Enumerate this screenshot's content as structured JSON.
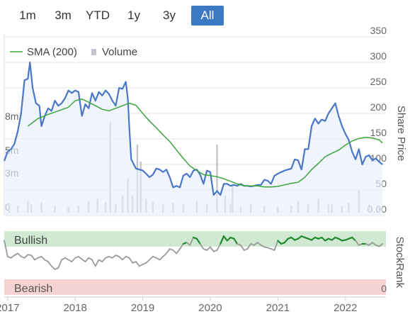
{
  "range_buttons": [
    {
      "label": "1m",
      "active": false
    },
    {
      "label": "3m",
      "active": false
    },
    {
      "label": "YTD",
      "active": false
    },
    {
      "label": "1y",
      "active": false
    },
    {
      "label": "3y",
      "active": false
    },
    {
      "label": "All",
      "active": true
    }
  ],
  "legend": {
    "sma_label": "SMA (200)",
    "volume_label": "Volume"
  },
  "colors": {
    "price": "#4a78c7",
    "sma": "#3aa63a",
    "volume": "#c4c4cc",
    "stockrank_green": "#1f8a2c",
    "stockrank_grey": "#9a9a9a",
    "bullish_band": "#cfe9d3",
    "bearish_band": "#f6d3d3",
    "active_button": "#3c78c3"
  },
  "chart_data": [
    {
      "type": "line",
      "ylabel": "Share Price",
      "ylim": [
        0,
        350
      ],
      "y_ticks": [
        "350",
        "300",
        "250",
        "200",
        "150",
        "100",
        "50",
        "0.00"
      ],
      "volume_ticks": [
        "8m",
        "5m",
        "3m",
        "0"
      ],
      "volume_ylim": [
        0,
        10
      ],
      "x_ticks": [
        "2017",
        "2018",
        "2019",
        "2020",
        "2021",
        "2022"
      ],
      "x_tick_values": [
        2017.0,
        2018.0,
        2019.0,
        2020.0,
        2021.0,
        2022.0
      ],
      "xlim": [
        2016.95,
        2022.6
      ],
      "series": [
        {
          "name": "Price",
          "x": [
            2016.95,
            2017.0,
            2017.05,
            2017.1,
            2017.15,
            2017.2,
            2017.25,
            2017.3,
            2017.33,
            2017.37,
            2017.42,
            2017.47,
            2017.5,
            2017.55,
            2017.6,
            2017.65,
            2017.7,
            2017.75,
            2017.8,
            2017.85,
            2017.9,
            2017.95,
            2018.0,
            2018.05,
            2018.1,
            2018.15,
            2018.2,
            2018.25,
            2018.3,
            2018.35,
            2018.4,
            2018.45,
            2018.5,
            2018.55,
            2018.6,
            2018.65,
            2018.7,
            2018.75,
            2018.78,
            2018.8,
            2018.83,
            2018.9,
            2018.95,
            2019.0,
            2019.05,
            2019.1,
            2019.15,
            2019.2,
            2019.25,
            2019.3,
            2019.35,
            2019.4,
            2019.45,
            2019.5,
            2019.55,
            2019.6,
            2019.65,
            2019.7,
            2019.75,
            2019.8,
            2019.85,
            2019.9,
            2019.95,
            2020.0,
            2020.05,
            2020.1,
            2020.15,
            2020.2,
            2020.25,
            2020.3,
            2020.35,
            2020.4,
            2020.45,
            2020.5,
            2020.55,
            2020.6,
            2020.65,
            2020.7,
            2020.75,
            2020.8,
            2020.85,
            2020.9,
            2020.95,
            2021.0,
            2021.05,
            2021.1,
            2021.15,
            2021.2,
            2021.25,
            2021.3,
            2021.35,
            2021.4,
            2021.45,
            2021.5,
            2021.55,
            2021.6,
            2021.65,
            2021.7,
            2021.75,
            2021.8,
            2021.85,
            2021.9,
            2021.95,
            2022.0,
            2022.05,
            2022.1,
            2022.15,
            2022.2,
            2022.25,
            2022.3,
            2022.35,
            2022.4,
            2022.45,
            2022.5,
            2022.55
          ],
          "values": [
            107,
            125,
            130,
            140,
            165,
            200,
            265,
            268,
            300,
            250,
            220,
            215,
            175,
            195,
            210,
            205,
            225,
            215,
            220,
            230,
            245,
            240,
            245,
            242,
            195,
            218,
            210,
            240,
            225,
            242,
            235,
            245,
            238,
            225,
            215,
            250,
            248,
            262,
            228,
            175,
            110,
            92,
            90,
            88,
            82,
            75,
            80,
            92,
            90,
            85,
            90,
            75,
            55,
            58,
            55,
            78,
            82,
            75,
            88,
            90,
            80,
            62,
            88,
            85,
            40,
            48,
            40,
            62,
            62,
            58,
            60,
            58,
            62,
            58,
            58,
            57,
            58,
            60,
            60,
            70,
            68,
            62,
            78,
            82,
            85,
            88,
            90,
            92,
            110,
            108,
            90,
            130,
            130,
            175,
            190,
            180,
            188,
            185,
            200,
            210,
            220,
            195,
            175,
            160,
            148,
            125,
            110,
            130,
            100,
            115,
            118,
            108,
            112,
            105,
            100
          ]
        },
        {
          "name": "SMA (200)",
          "x": [
            2017.3,
            2017.45,
            2017.6,
            2017.75,
            2017.9,
            2018.0,
            2018.1,
            2018.2,
            2018.3,
            2018.4,
            2018.5,
            2018.6,
            2018.7,
            2018.8,
            2018.9,
            2019.0,
            2019.1,
            2019.2,
            2019.3,
            2019.4,
            2019.5,
            2019.6,
            2019.7,
            2019.8,
            2019.9,
            2020.0,
            2020.1,
            2020.2,
            2020.3,
            2020.4,
            2020.5,
            2020.6,
            2020.7,
            2020.8,
            2020.9,
            2021.0,
            2021.1,
            2021.2,
            2021.3,
            2021.4,
            2021.5,
            2021.6,
            2021.7,
            2021.8,
            2021.9,
            2022.0,
            2022.1,
            2022.2,
            2022.3,
            2022.4,
            2022.5,
            2022.55
          ],
          "values": [
            175,
            190,
            198,
            205,
            212,
            225,
            228,
            222,
            215,
            208,
            205,
            210,
            215,
            220,
            216,
            200,
            185,
            172,
            158,
            145,
            128,
            112,
            97,
            88,
            80,
            78,
            76,
            72,
            67,
            62,
            58,
            58,
            58,
            56,
            56,
            57,
            60,
            63,
            65,
            75,
            90,
            102,
            115,
            122,
            128,
            138,
            146,
            151,
            153,
            152,
            148,
            142
          ]
        },
        {
          "name": "Volume",
          "x": [
            2017.02,
            2017.15,
            2017.3,
            2017.35,
            2017.5,
            2017.7,
            2017.9,
            2018.05,
            2018.2,
            2018.33,
            2018.45,
            2018.52,
            2018.6,
            2018.7,
            2018.78,
            2018.85,
            2018.92,
            2018.97,
            2019.05,
            2019.15,
            2019.3,
            2019.45,
            2019.6,
            2019.8,
            2019.95,
            2020.1,
            2020.22,
            2020.3,
            2020.33,
            2020.45,
            2020.6,
            2020.8,
            2021.0,
            2021.2,
            2021.3,
            2021.45,
            2021.6,
            2021.75,
            2021.8,
            2021.95,
            2022.05,
            2022.2,
            2022.35,
            2022.5
          ],
          "values": [
            0.8,
            0.6,
            1.0,
            0.7,
            0.9,
            0.6,
            0.5,
            0.6,
            1.0,
            1.2,
            0.9,
            8.0,
            0.7,
            1.5,
            3.0,
            1.5,
            6.0,
            4.5,
            1.2,
            0.9,
            0.7,
            0.9,
            0.8,
            1.0,
            0.7,
            6.0,
            1.5,
            0.8,
            2.5,
            0.5,
            0.7,
            0.6,
            0.5,
            0.6,
            1.0,
            0.8,
            1.2,
            0.7,
            0.8,
            0.6,
            0.9,
            2.0,
            0.7,
            0.6
          ]
        }
      ]
    },
    {
      "type": "line",
      "ylabel": "StockRank",
      "ylim": [
        0,
        100
      ],
      "y_ticks": [
        "0"
      ],
      "band_labels": {
        "top": "Bullish",
        "bottom": "Bearish"
      },
      "x_ticks": [
        "2017",
        "2018",
        "2019",
        "2020",
        "2021",
        "2022"
      ],
      "x_tick_values": [
        2017.0,
        2018.0,
        2019.0,
        2020.0,
        2021.0,
        2022.0
      ],
      "xlim": [
        2016.95,
        2022.6
      ],
      "series": [
        {
          "name": "StockRank",
          "x": [
            2016.95,
            2017.0,
            2017.05,
            2017.1,
            2017.15,
            2017.2,
            2017.25,
            2017.3,
            2017.35,
            2017.4,
            2017.45,
            2017.5,
            2017.55,
            2017.6,
            2017.65,
            2017.7,
            2017.75,
            2017.8,
            2017.85,
            2017.9,
            2017.95,
            2018.0,
            2018.05,
            2018.1,
            2018.15,
            2018.2,
            2018.25,
            2018.3,
            2018.35,
            2018.4,
            2018.45,
            2018.5,
            2018.55,
            2018.6,
            2018.65,
            2018.7,
            2018.75,
            2018.8,
            2018.85,
            2018.9,
            2018.95,
            2019.0,
            2019.05,
            2019.1,
            2019.15,
            2019.2,
            2019.25,
            2019.3,
            2019.35,
            2019.4,
            2019.45,
            2019.5,
            2019.55,
            2019.6,
            2019.65,
            2019.7,
            2019.75,
            2019.8,
            2019.85,
            2019.9,
            2019.95,
            2020.0,
            2020.05,
            2020.1,
            2020.15,
            2020.2,
            2020.25,
            2020.3,
            2020.35,
            2020.4,
            2020.45,
            2020.5,
            2020.55,
            2020.6,
            2020.65,
            2020.7,
            2020.75,
            2020.8,
            2020.85,
            2020.9,
            2020.95,
            2021.0,
            2021.05,
            2021.1,
            2021.15,
            2021.2,
            2021.25,
            2021.3,
            2021.35,
            2021.4,
            2021.45,
            2021.5,
            2021.55,
            2021.6,
            2021.65,
            2021.7,
            2021.75,
            2021.8,
            2021.85,
            2021.9,
            2021.95,
            2022.0,
            2022.05,
            2022.1,
            2022.15,
            2022.2,
            2022.25,
            2022.3,
            2022.35,
            2022.4,
            2022.45,
            2022.5,
            2022.55
          ],
          "values": [
            85,
            60,
            58,
            62,
            65,
            60,
            58,
            63,
            62,
            55,
            58,
            60,
            55,
            52,
            45,
            40,
            42,
            55,
            58,
            55,
            52,
            58,
            60,
            56,
            52,
            58,
            55,
            45,
            55,
            52,
            58,
            60,
            58,
            62,
            60,
            55,
            60,
            58,
            50,
            52,
            45,
            48,
            50,
            55,
            60,
            58,
            55,
            60,
            65,
            72,
            70,
            65,
            72,
            80,
            82,
            78,
            90,
            88,
            80,
            72,
            70,
            75,
            68,
            70,
            80,
            92,
            85,
            90,
            88,
            80,
            78,
            70,
            72,
            80,
            78,
            82,
            78,
            75,
            74,
            72,
            70,
            85,
            80,
            82,
            88,
            90,
            86,
            88,
            92,
            90,
            88,
            86,
            90,
            88,
            90,
            85,
            88,
            86,
            90,
            88,
            85,
            86,
            88,
            90,
            85,
            78,
            80,
            80,
            78,
            82,
            78,
            76,
            80
          ]
        }
      ]
    }
  ]
}
